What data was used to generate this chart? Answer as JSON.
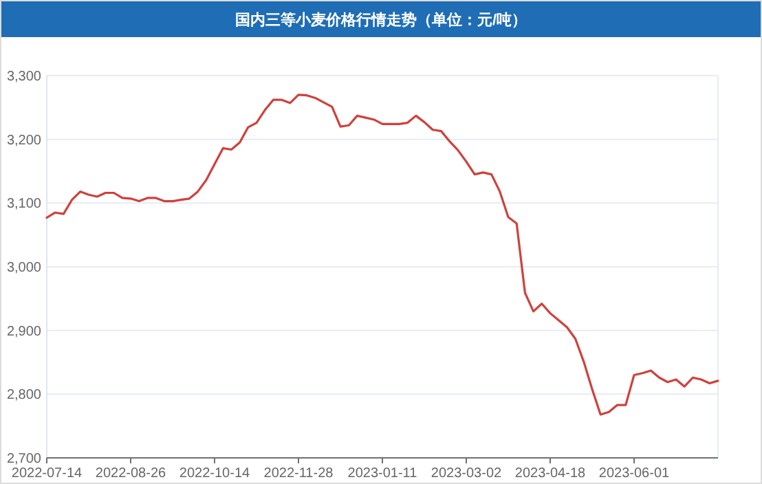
{
  "chart_data": {
    "type": "line",
    "title": "国内三等小麦价格行情走势（单位：元/吨）",
    "categories": [
      "2022-07-14",
      null,
      null,
      null,
      null,
      null,
      null,
      null,
      null,
      null,
      "2022-08-26",
      null,
      null,
      null,
      null,
      null,
      null,
      null,
      null,
      null,
      "2022-10-14",
      null,
      null,
      null,
      null,
      null,
      null,
      null,
      null,
      null,
      "2022-11-28",
      null,
      null,
      null,
      null,
      null,
      null,
      null,
      null,
      null,
      "2023-01-11",
      null,
      null,
      null,
      null,
      null,
      null,
      null,
      null,
      null,
      "2023-03-02",
      null,
      null,
      null,
      null,
      null,
      null,
      null,
      null,
      null,
      "2023-04-18",
      null,
      null,
      null,
      null,
      null,
      null,
      null,
      null,
      null,
      "2023-06-01",
      null,
      null,
      null,
      null,
      null,
      null,
      null,
      null,
      null,
      null
    ],
    "values": [
      3077,
      3085,
      3083,
      3105,
      3118,
      3113,
      3110,
      3116,
      3116,
      3108,
      3107,
      3103,
      3108,
      3108,
      3103,
      3103,
      3105,
      3107,
      3118,
      3136,
      3161,
      3186,
      3184,
      3195,
      3219,
      3226,
      3246,
      3262,
      3262,
      3257,
      3270,
      3269,
      3265,
      3258,
      3251,
      3220,
      3222,
      3237,
      3234,
      3231,
      3224,
      3224,
      3224,
      3226,
      3237,
      3227,
      3215,
      3213,
      3197,
      3183,
      3165,
      3145,
      3148,
      3145,
      3118,
      3078,
      3068,
      2959,
      2930,
      2942,
      2927,
      2916,
      2905,
      2887,
      2851,
      2808,
      2768,
      2772,
      2783,
      2783,
      2830,
      2833,
      2837,
      2826,
      2819,
      2823,
      2812,
      2826,
      2823,
      2817,
      2821
    ],
    "color": "#d0413c",
    "ylim": [
      2700,
      3300
    ],
    "yticks": [
      {
        "value": 2700,
        "label": "2,700"
      },
      {
        "value": 2800,
        "label": "2,800"
      },
      {
        "value": 2900,
        "label": "2,900"
      },
      {
        "value": 3000,
        "label": "3,000"
      },
      {
        "value": 3100,
        "label": "3,100"
      },
      {
        "value": 3200,
        "label": "3,200"
      },
      {
        "value": 3300,
        "label": "3,300"
      }
    ],
    "grid": "y"
  }
}
